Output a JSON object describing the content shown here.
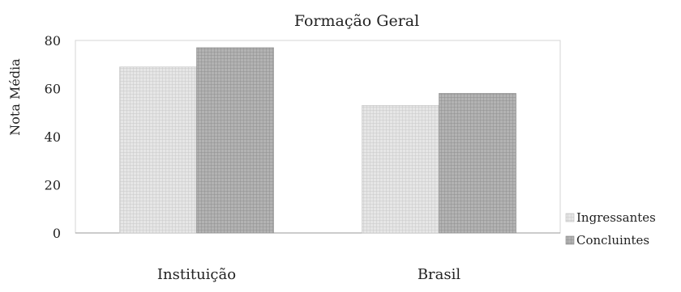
{
  "chart_data": {
    "type": "bar",
    "title": "Formação Geral",
    "xlabel": "",
    "ylabel": "Nota Média",
    "categories": [
      "Instituição",
      "Brasil"
    ],
    "series": [
      {
        "name": "Ingressantes",
        "values": [
          69,
          53
        ],
        "color": "#d9d9d9"
      },
      {
        "name": "Concluintes",
        "values": [
          77,
          58
        ],
        "color": "#a6a6a6"
      }
    ],
    "ylim": [
      0,
      80
    ],
    "yticks": [
      0,
      20,
      40,
      60,
      80
    ],
    "grid": false,
    "legend_position": "right"
  }
}
